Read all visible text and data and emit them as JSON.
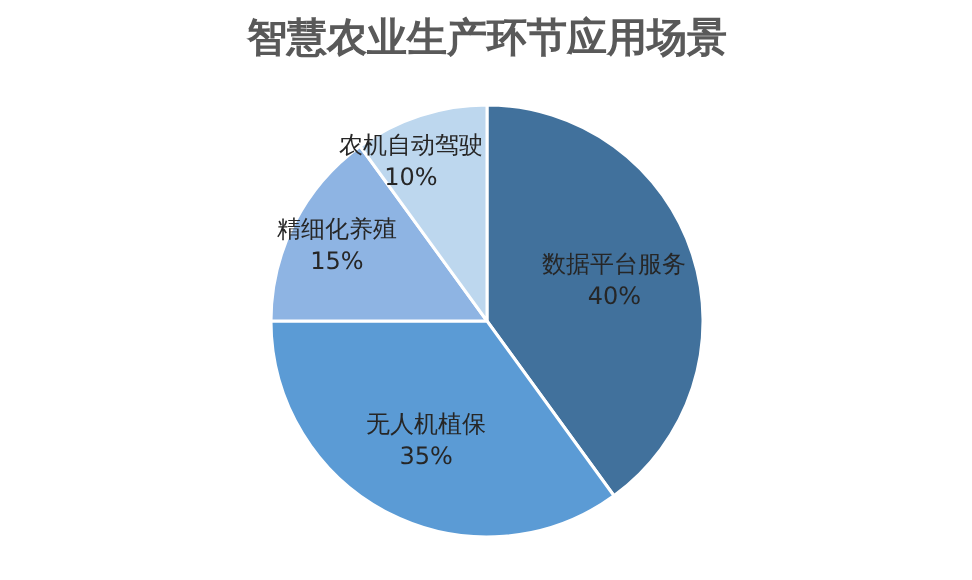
{
  "chart_data": {
    "type": "pie",
    "title": "智慧农业生产环节应用场景",
    "categories": [
      "数据平台服务",
      "无人机植保",
      "精细化养殖",
      "农机自动驾驶"
    ],
    "values": [
      40,
      35,
      15,
      10
    ],
    "value_labels": [
      "40%",
      "35%",
      "15%",
      "10%"
    ],
    "colors": [
      "#41719c",
      "#5b9bd5",
      "#8eb4e3",
      "#bdd7ee"
    ]
  }
}
